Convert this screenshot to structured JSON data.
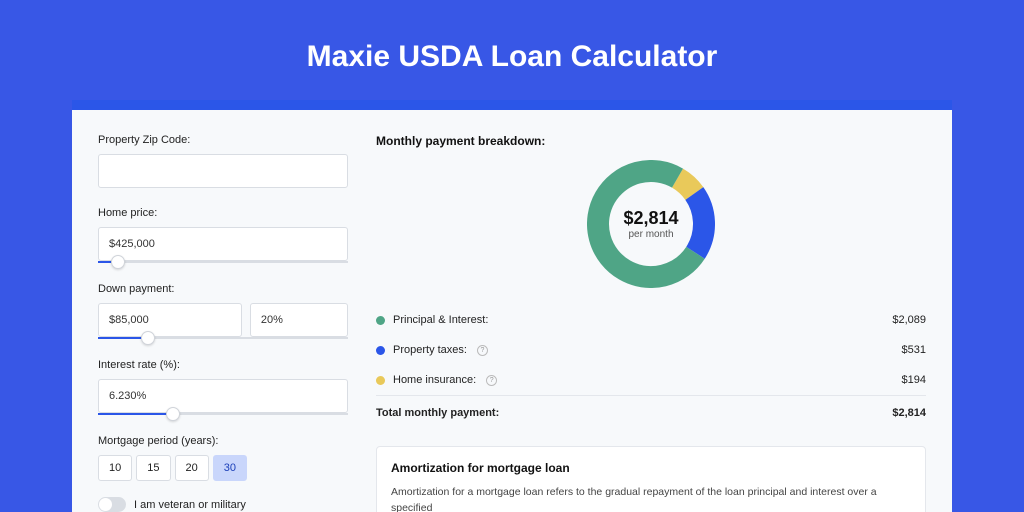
{
  "page_background": "#3857e6",
  "title": "Maxie USDA Loan Calculator",
  "card": {
    "background": "#f7f9fb",
    "accent_bar": "#2b56e8"
  },
  "form": {
    "zip": {
      "label": "Property Zip Code:",
      "value": ""
    },
    "home_price": {
      "label": "Home price:",
      "value": "$425,000",
      "slider_pct": 8
    },
    "down_payment": {
      "label": "Down payment:",
      "amount": "$85,000",
      "pct": "20%",
      "slider_pct": 20
    },
    "interest_rate": {
      "label": "Interest rate (%):",
      "value": "6.230%",
      "slider_pct": 30
    },
    "mortgage_period": {
      "label": "Mortgage period (years):",
      "options": [
        "10",
        "15",
        "20",
        "30"
      ],
      "active_index": 3
    },
    "veteran": {
      "label": "I am veteran or military",
      "checked": false
    }
  },
  "breakdown": {
    "title": "Monthly payment breakdown:",
    "center_amount": "$2,814",
    "center_sub": "per month",
    "donut": {
      "size": 128,
      "thickness": 22,
      "segments": [
        {
          "label": "Principal & Interest:",
          "value": "$2,089",
          "color": "#4fa586",
          "fraction": 0.742,
          "info": false
        },
        {
          "label": "Property taxes:",
          "value": "$531",
          "color": "#2b56e8",
          "fraction": 0.189,
          "info": true
        },
        {
          "label": "Home insurance:",
          "value": "$194",
          "color": "#e9c95a",
          "fraction": 0.069,
          "info": true
        }
      ]
    },
    "total": {
      "label": "Total monthly payment:",
      "value": "$2,814"
    }
  },
  "amortization": {
    "title": "Amortization for mortgage loan",
    "text": "Amortization for a mortgage loan refers to the gradual repayment of the loan principal and interest over a specified"
  }
}
